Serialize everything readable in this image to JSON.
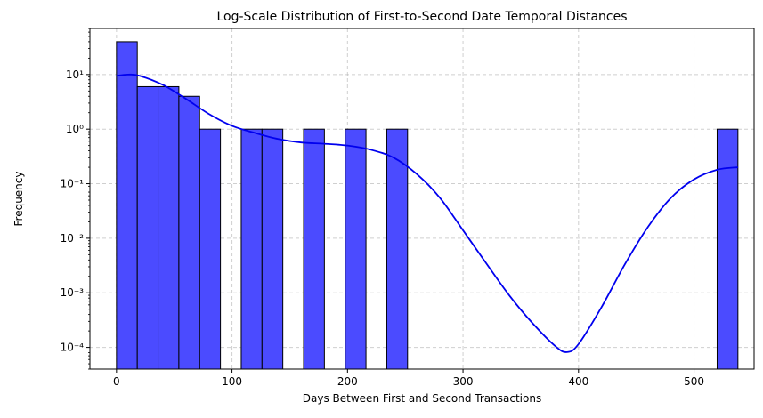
{
  "chart_data": {
    "type": "bar",
    "title": "Log-Scale Distribution of First-to-Second Date Temporal Distances",
    "xlabel": "Days Between First and Second Transactions",
    "ylabel": "Frequency",
    "yscale": "log",
    "xlim": [
      -23,
      552
    ],
    "ylim": [
      4e-05,
      70
    ],
    "xticks": [
      0,
      100,
      200,
      300,
      400,
      500
    ],
    "yticks": [
      {
        "value": 0.0001,
        "label": "10⁻⁴"
      },
      {
        "value": 0.001,
        "label": "10⁻³"
      },
      {
        "value": 0.01,
        "label": "10⁻²"
      },
      {
        "value": 0.1,
        "label": "10⁻¹"
      },
      {
        "value": 1,
        "label": "10⁰"
      },
      {
        "value": 10,
        "label": "10¹"
      }
    ],
    "grid": true,
    "bar_color": "#4b4bff",
    "bar_edge_color": "#000000",
    "bins": [
      {
        "x0": 0,
        "x1": 18,
        "count": 40
      },
      {
        "x0": 18,
        "x1": 36,
        "count": 6
      },
      {
        "x0": 36,
        "x1": 54,
        "count": 6
      },
      {
        "x0": 54,
        "x1": 72,
        "count": 4
      },
      {
        "x0": 72,
        "x1": 90,
        "count": 1
      },
      {
        "x0": 108,
        "x1": 126,
        "count": 1
      },
      {
        "x0": 126,
        "x1": 144,
        "count": 1
      },
      {
        "x0": 162,
        "x1": 180,
        "count": 1
      },
      {
        "x0": 198,
        "x1": 216,
        "count": 1
      },
      {
        "x0": 234,
        "x1": 252,
        "count": 1
      },
      {
        "x0": 520,
        "x1": 538,
        "count": 1
      }
    ],
    "kde": {
      "color": "#0000ee",
      "x": [
        0,
        10,
        20,
        40,
        60,
        80,
        100,
        120,
        140,
        160,
        180,
        200,
        220,
        240,
        260,
        280,
        300,
        320,
        340,
        360,
        380,
        390,
        400,
        420,
        440,
        460,
        480,
        500,
        520,
        538
      ],
      "y": [
        9.5,
        10,
        9.5,
        6.5,
        3.6,
        1.9,
        1.15,
        0.85,
        0.66,
        0.57,
        0.54,
        0.5,
        0.42,
        0.3,
        0.15,
        0.055,
        0.014,
        0.0035,
        0.0009,
        0.00028,
        0.000105,
        8.2e-05,
        0.000115,
        0.00055,
        0.0033,
        0.016,
        0.055,
        0.12,
        0.18,
        0.2
      ]
    }
  }
}
